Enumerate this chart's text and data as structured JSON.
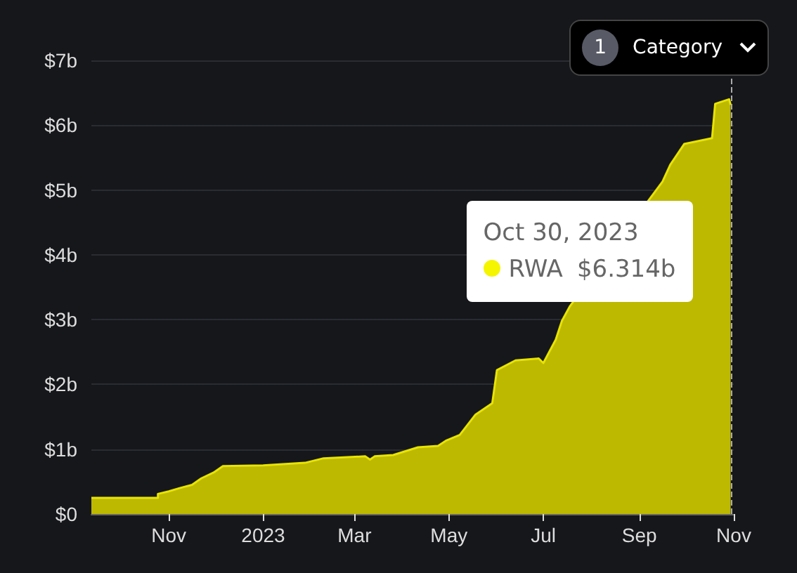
{
  "chart_data": {
    "type": "area",
    "x": [
      "2022-09-12",
      "2022-10-25",
      "2022-10-25",
      "2022-11-01",
      "2022-11-08",
      "2022-11-16",
      "2022-11-22",
      "2022-11-30",
      "2022-12-06",
      "2023-01-01",
      "2023-01-28",
      "2023-02-09",
      "2023-03-08",
      "2023-03-11",
      "2023-03-14",
      "2023-03-26",
      "2023-04-11",
      "2023-04-24",
      "2023-04-29",
      "2023-05-08",
      "2023-05-18",
      "2023-05-29",
      "2023-06-01",
      "2023-06-13",
      "2023-06-28",
      "2023-07-01",
      "2023-07-09",
      "2023-07-13",
      "2023-07-18",
      "2023-09-16",
      "2023-09-21",
      "2023-09-30",
      "2023-10-18",
      "2023-10-20",
      "2023-10-29",
      "2023-10-30"
    ],
    "series": [
      {
        "name": "RWA",
        "color": "#bdb800",
        "values": [
          0.25,
          0.25,
          0.31,
          0.35,
          0.4,
          0.45,
          0.55,
          0.64,
          0.74,
          0.75,
          0.79,
          0.86,
          0.89,
          0.84,
          0.89,
          0.91,
          1.03,
          1.05,
          1.13,
          1.22,
          1.53,
          1.71,
          2.22,
          2.37,
          2.4,
          2.33,
          2.69,
          2.98,
          3.2,
          5.13,
          5.39,
          5.71,
          5.8,
          6.33,
          6.4,
          6.314
        ]
      }
    ],
    "xlim": [
      "2022-09-12",
      "2023-11-01"
    ],
    "xticks": [
      {
        "value": "2022-11-01",
        "label": "Nov"
      },
      {
        "value": "2023-01-01",
        "label": "2023"
      },
      {
        "value": "2023-03-01",
        "label": "Mar"
      },
      {
        "value": "2023-05-01",
        "label": "May"
      },
      {
        "value": "2023-07-01",
        "label": "Jul"
      },
      {
        "value": "2023-09-01",
        "label": "Sep"
      },
      {
        "value": "2023-11-01",
        "label": "Nov"
      }
    ],
    "ylim": [
      0,
      7
    ],
    "yticks": [
      {
        "value": 0,
        "label": "$0"
      },
      {
        "value": 1,
        "label": "$1b"
      },
      {
        "value": 2,
        "label": "$2b"
      },
      {
        "value": 3,
        "label": "$3b"
      },
      {
        "value": 4,
        "label": "$4b"
      },
      {
        "value": 5,
        "label": "$5b"
      },
      {
        "value": 6,
        "label": "$6b"
      },
      {
        "value": 7,
        "label": "$7b"
      }
    ],
    "grid": "y",
    "legend": false,
    "ref_lines": [
      {
        "axis": "x",
        "value": "2023-10-30",
        "label": null,
        "color": "#aaaaaa",
        "line_style": "dashed"
      }
    ],
    "annotations": [
      "Oct 30, 2023",
      "$6.314b",
      "1",
      "Category"
    ]
  }
}
